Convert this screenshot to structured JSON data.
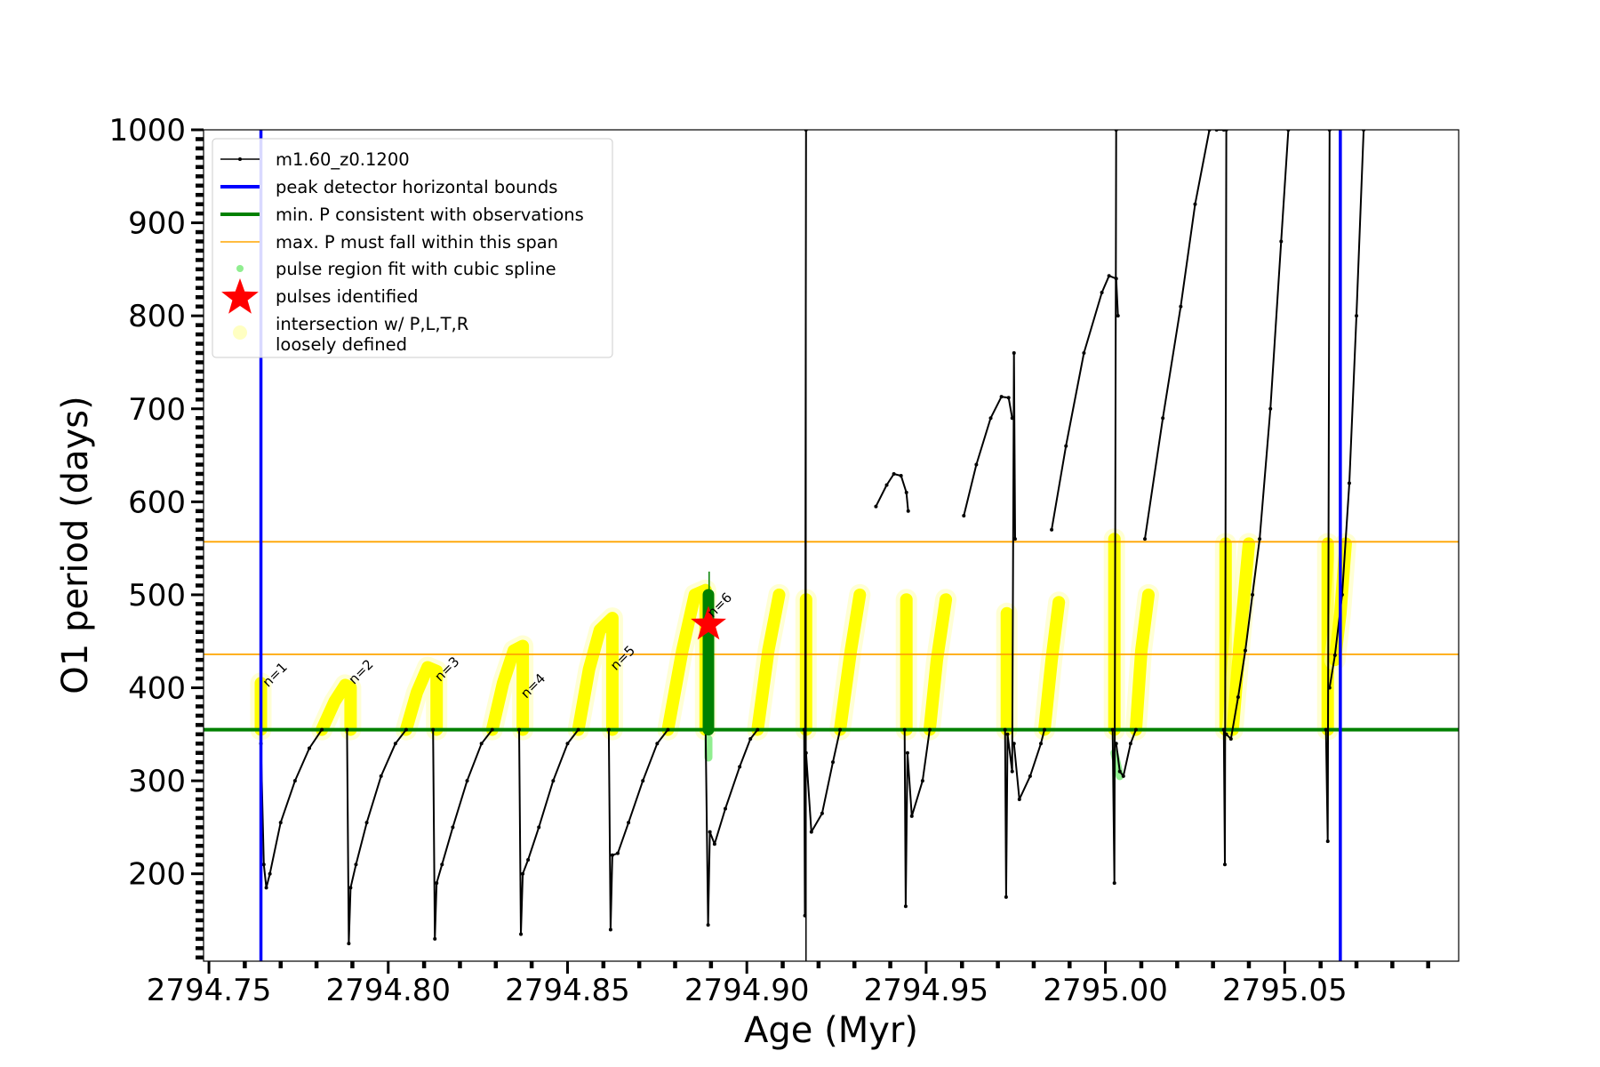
{
  "chart_data": {
    "type": "line",
    "xlabel": "Age (Myr)",
    "ylabel": "O1 period (days)",
    "xlim": [
      2794.7485,
      2795.0985
    ],
    "ylim": [
      106,
      1000
    ],
    "x_ticks": [
      2794.75,
      2794.8,
      2794.85,
      2794.9,
      2794.95,
      2795.0,
      2795.05
    ],
    "x_tick_labels": [
      "2794.75",
      "2794.80",
      "2794.85",
      "2794.90",
      "2794.95",
      "2795.00",
      "2795.05"
    ],
    "y_ticks": [
      200,
      300,
      400,
      500,
      600,
      700,
      800,
      900,
      1000
    ],
    "y_tick_labels": [
      "200",
      "300",
      "400",
      "500",
      "600",
      "700",
      "800",
      "900",
      "1000"
    ],
    "grid": false,
    "legend_placement": "top-left",
    "legend": [
      {
        "label": "m1.60_z0.1200",
        "marker": "line-dot",
        "color": "#000000"
      },
      {
        "label": "peak detector horizontal bounds",
        "marker": "thick-line",
        "color": "#0000ff"
      },
      {
        "label": "min. P consistent with observations",
        "marker": "thick-line",
        "color": "#008000"
      },
      {
        "label": "max. P must fall within this span",
        "marker": "thin-line",
        "color": "#ffa500"
      },
      {
        "label": "pulse region fit with cubic spline",
        "marker": "dot",
        "color": "#90ee90"
      },
      {
        "label": "pulses identified",
        "marker": "star",
        "color": "#ff0000"
      },
      {
        "label": "intersection w/ P,L,T,R",
        "label2": "loosely defined",
        "marker": "circle",
        "color": "#ffff99"
      }
    ],
    "reference_lines": {
      "vertical_blue": [
        2794.7645,
        2795.0655
      ],
      "vertical_black": [
        2794.9165
      ],
      "horizontal_green": 355,
      "horizontal_orange": [
        436,
        557
      ]
    },
    "series": [
      {
        "name": "m1.60_z0.1200",
        "color": "#000000",
        "segments": [
          [
            [
              2794.7645,
              340
            ],
            [
              2794.7653,
              210
            ],
            [
              2794.766,
              185
            ],
            [
              2794.767,
              200
            ],
            [
              2794.77,
              255
            ],
            [
              2794.774,
              300
            ],
            [
              2794.778,
              335
            ],
            [
              2794.7815,
              355
            ]
          ],
          [
            [
              2794.7885,
              355
            ],
            [
              2794.789,
              125
            ],
            [
              2794.7895,
              185
            ],
            [
              2794.791,
              210
            ],
            [
              2794.794,
              255
            ],
            [
              2794.798,
              305
            ],
            [
              2794.802,
              340
            ],
            [
              2794.805,
              355
            ]
          ],
          [
            [
              2794.8125,
              355
            ],
            [
              2794.813,
              130
            ],
            [
              2794.8135,
              190
            ],
            [
              2794.815,
              210
            ],
            [
              2794.818,
              250
            ],
            [
              2794.822,
              300
            ],
            [
              2794.826,
              340
            ],
            [
              2794.829,
              355
            ]
          ],
          [
            [
              2794.8365,
              355
            ],
            [
              2794.837,
              135
            ],
            [
              2794.8375,
              200
            ],
            [
              2794.839,
              215
            ],
            [
              2794.842,
              250
            ],
            [
              2794.846,
              300
            ],
            [
              2794.85,
              340
            ],
            [
              2794.853,
              355
            ]
          ],
          [
            [
              2794.8615,
              355
            ],
            [
              2794.862,
              140
            ],
            [
              2794.8625,
              220
            ],
            [
              2794.864,
              222
            ],
            [
              2794.867,
              255
            ],
            [
              2794.871,
              300
            ],
            [
              2794.875,
              340
            ],
            [
              2794.878,
              355
            ]
          ],
          [
            [
              2794.8885,
              355
            ],
            [
              2794.8892,
              145
            ],
            [
              2794.8897,
              245
            ],
            [
              2794.891,
              232
            ],
            [
              2794.894,
              270
            ],
            [
              2794.898,
              315
            ],
            [
              2794.901,
              345
            ],
            [
              2794.903,
              355
            ]
          ],
          [
            [
              2794.916,
              355
            ],
            [
              2794.9162,
              155
            ],
            [
              2794.9165,
              1000
            ]
          ],
          [
            [
              2794.9165,
              330
            ],
            [
              2794.918,
              245
            ],
            [
              2794.921,
              265
            ],
            [
              2794.924,
              320
            ],
            [
              2794.926,
              355
            ]
          ],
          [
            [
              2794.936,
              595
            ],
            [
              2794.939,
              618
            ],
            [
              2794.941,
              630
            ],
            [
              2794.943,
              628
            ],
            [
              2794.9445,
              610
            ],
            [
              2794.945,
              590
            ]
          ],
          [
            [
              2794.944,
              355
            ],
            [
              2794.9443,
              165
            ],
            [
              2794.9448,
              330
            ],
            [
              2794.946,
              262
            ],
            [
              2794.949,
              300
            ],
            [
              2794.951,
              355
            ]
          ],
          [
            [
              2794.9605,
              585
            ],
            [
              2794.964,
              640
            ],
            [
              2794.968,
              690
            ],
            [
              2794.971,
              713
            ],
            [
              2794.973,
              712
            ],
            [
              2794.974,
              690
            ]
          ],
          [
            [
              2794.972,
              355
            ],
            [
              2794.9723,
              175
            ],
            [
              2794.9727,
              350
            ],
            [
              2794.974,
              310
            ],
            [
              2794.9745,
              760
            ],
            [
              2794.9748,
              560
            ]
          ],
          [
            [
              2794.9745,
              340
            ],
            [
              2794.976,
              280
            ],
            [
              2794.979,
              305
            ],
            [
              2794.982,
              340
            ],
            [
              2794.983,
              355
            ]
          ],
          [
            [
              2794.985,
              570
            ],
            [
              2794.989,
              660
            ],
            [
              2794.994,
              760
            ],
            [
              2794.999,
              825
            ],
            [
              2795.001,
              843
            ],
            [
              2795.003,
              840
            ],
            [
              2795.0035,
              800
            ]
          ],
          [
            [
              2795.002,
              355
            ],
            [
              2795.0025,
              190
            ],
            [
              2795.003,
              1000
            ]
          ],
          [
            [
              2795.003,
              340
            ],
            [
              2795.004,
              310
            ],
            [
              2795.005,
              305
            ],
            [
              2795.007,
              340
            ],
            [
              2795.0085,
              355
            ]
          ],
          [
            [
              2795.011,
              560
            ],
            [
              2795.016,
              690
            ],
            [
              2795.021,
              810
            ],
            [
              2795.025,
              920
            ],
            [
              2795.029,
              1000
            ]
          ],
          [
            [
              2795.031,
              1000
            ],
            [
              2795.033,
              1000
            ]
          ],
          [
            [
              2795.033,
              355
            ],
            [
              2795.0333,
              210
            ],
            [
              2795.0337,
              1000
            ]
          ],
          [
            [
              2795.0337,
              350
            ],
            [
              2795.035,
              345
            ],
            [
              2795.037,
              390
            ],
            [
              2795.039,
              440
            ],
            [
              2795.041,
              500
            ],
            [
              2795.043,
              560
            ],
            [
              2795.046,
              700
            ],
            [
              2795.049,
              880
            ],
            [
              2795.051,
              1000
            ]
          ],
          [
            [
              2795.0615,
              355
            ],
            [
              2795.062,
              235
            ],
            [
              2795.0625,
              1000
            ]
          ],
          [
            [
              2795.0625,
              400
            ],
            [
              2795.064,
              435
            ],
            [
              2795.066,
              500
            ],
            [
              2795.068,
              620
            ],
            [
              2795.07,
              800
            ],
            [
              2795.072,
              1000
            ]
          ]
        ]
      }
    ],
    "intersection_segments": [
      [
        [
          2794.7645,
          355
        ],
        [
          2794.7645,
          405
        ]
      ],
      [
        [
          2794.7815,
          355
        ],
        [
          2794.785,
          385
        ],
        [
          2794.788,
          403
        ],
        [
          2794.7895,
          400
        ],
        [
          2794.7895,
          355
        ]
      ],
      [
        [
          2794.805,
          355
        ],
        [
          2794.808,
          395
        ],
        [
          2794.811,
          422
        ],
        [
          2794.8135,
          418
        ],
        [
          2794.8135,
          355
        ]
      ],
      [
        [
          2794.829,
          355
        ],
        [
          2794.832,
          405
        ],
        [
          2794.835,
          440
        ],
        [
          2794.8375,
          445
        ],
        [
          2794.8375,
          355
        ]
      ],
      [
        [
          2794.853,
          355
        ],
        [
          2794.856,
          420
        ],
        [
          2794.859,
          462
        ],
        [
          2794.8625,
          475
        ],
        [
          2794.8625,
          355
        ]
      ],
      [
        [
          2794.878,
          355
        ],
        [
          2794.882,
          440
        ],
        [
          2794.8855,
          500
        ],
        [
          2794.8885,
          505
        ],
        [
          2794.8885,
          355
        ]
      ],
      [
        [
          2794.903,
          355
        ],
        [
          2794.906,
          440
        ],
        [
          2794.909,
          500
        ]
      ],
      [
        [
          2794.9165,
          355
        ],
        [
          2794.9165,
          495
        ]
      ],
      [
        [
          2794.926,
          355
        ],
        [
          2794.929,
          440
        ],
        [
          2794.9315,
          500
        ]
      ],
      [
        [
          2794.9445,
          355
        ],
        [
          2794.9445,
          495
        ]
      ],
      [
        [
          2794.951,
          355
        ],
        [
          2794.953,
          430
        ],
        [
          2794.9555,
          495
        ]
      ],
      [
        [
          2794.9725,
          355
        ],
        [
          2794.9725,
          480
        ]
      ],
      [
        [
          2794.983,
          355
        ],
        [
          2794.985,
          430
        ],
        [
          2794.987,
          492
        ]
      ],
      [
        [
          2795.0025,
          355
        ],
        [
          2795.0025,
          560
        ]
      ],
      [
        [
          2795.0085,
          355
        ],
        [
          2795.01,
          440
        ],
        [
          2795.012,
          500
        ]
      ],
      [
        [
          2795.0335,
          355
        ],
        [
          2795.0335,
          555
        ]
      ],
      [
        [
          2795.0355,
          355
        ],
        [
          2795.0375,
          450
        ],
        [
          2795.04,
          555
        ]
      ],
      [
        [
          2795.062,
          355
        ],
        [
          2795.062,
          555
        ]
      ],
      [
        [
          2795.064,
          430
        ],
        [
          2795.0655,
          480
        ],
        [
          2795.067,
          555
        ]
      ]
    ],
    "cubic_spline_regions": [
      [
        [
          2794.8893,
          325
        ],
        [
          2794.8893,
          345
        ]
      ],
      [
        [
          2795.0025,
          330
        ],
        [
          2795.004,
          305
        ]
      ]
    ],
    "identified_pulse_segment": [
      [
        2794.8893,
        355
      ],
      [
        2794.8893,
        500
      ]
    ],
    "identified_pulse_spike": [
      [
        2794.8895,
        500
      ],
      [
        2794.8895,
        525
      ]
    ],
    "identified_pulse_star": [
      2794.8893,
      468
    ],
    "pulse_labels": [
      {
        "text": "n=1",
        "x": 2794.7665,
        "y": 400
      },
      {
        "text": "n=2",
        "x": 2794.7905,
        "y": 403
      },
      {
        "text": "n=3",
        "x": 2794.8145,
        "y": 406
      },
      {
        "text": "n=4",
        "x": 2794.8385,
        "y": 388
      },
      {
        "text": "n=5",
        "x": 2794.8635,
        "y": 418
      },
      {
        "text": "n=6",
        "x": 2794.8905,
        "y": 475
      }
    ]
  }
}
